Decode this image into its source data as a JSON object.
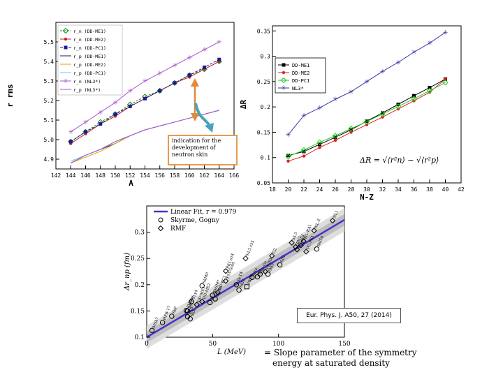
{
  "annotation": {
    "text": "indication for the development of neutron skin"
  },
  "citation": {
    "text": "Eur. Phys. J. A50, 27 (2014)"
  },
  "slope_note": {
    "line1": "= Slope parameter of the symmetry",
    "line2": "energy at saturated density"
  },
  "chart_data": [
    {
      "type": "line",
      "xlabel": "A",
      "ylabel": "r rms",
      "xlim": [
        142,
        166
      ],
      "ylim": [
        4.85,
        5.6
      ],
      "xticks": [
        142,
        144,
        146,
        148,
        150,
        152,
        154,
        156,
        158,
        160,
        162,
        164,
        166
      ],
      "yticks": [
        4.9,
        5.0,
        5.1,
        5.2,
        5.3,
        5.4,
        5.5
      ],
      "x": [
        144,
        146,
        148,
        150,
        152,
        154,
        156,
        158,
        160,
        162,
        164
      ],
      "legend": [
        "r_n (DD-ME1)",
        "r_n (DD-ME2)",
        "r_n (DD-PC1)",
        "r_p (DD-ME1)",
        "r_p (DD-ME2)",
        "r_p (DD-PC1)",
        "r_n (NL3*)",
        "r_p (NL3*)"
      ],
      "legend_position": "top-left",
      "series": [
        {
          "name": "r_n (DD-ME1)",
          "color": "#1a8c1a",
          "values": [
            4.99,
            5.04,
            5.09,
            5.13,
            5.18,
            5.22,
            5.25,
            5.29,
            5.33,
            5.36,
            5.4
          ]
        },
        {
          "name": "r_n (DD-ME2)",
          "color": "#cc2222",
          "values": [
            4.98,
            5.03,
            5.08,
            5.12,
            5.17,
            5.21,
            5.25,
            5.29,
            5.32,
            5.36,
            5.4
          ]
        },
        {
          "name": "r_n (DD-PC1)",
          "color": "#1a1a99",
          "values": [
            4.99,
            5.04,
            5.08,
            5.13,
            5.17,
            5.21,
            5.25,
            5.29,
            5.33,
            5.37,
            5.41
          ]
        },
        {
          "name": "r_p (DD-ME1)",
          "color": "#0d1f66",
          "values": [
            4.88,
            4.92,
            4.95,
            4.98,
            5.02,
            5.05,
            5.07,
            5.09,
            5.11,
            5.13,
            5.15
          ]
        },
        {
          "name": "r_p (DD-ME2)",
          "color": "#d9a800",
          "values": [
            4.88,
            4.91,
            4.94,
            4.98,
            5.02,
            5.05,
            5.07,
            5.09,
            5.11,
            5.13,
            5.15
          ]
        },
        {
          "name": "r_p (DD-PC1)",
          "color": "#66c8ee",
          "values": [
            4.89,
            4.92,
            4.95,
            4.99,
            5.02,
            5.05,
            5.07,
            5.09,
            5.11,
            5.13,
            5.15
          ]
        },
        {
          "name": "r_n (NL3*)",
          "color": "#aa55cc",
          "values": [
            5.04,
            5.09,
            5.14,
            5.19,
            5.25,
            5.3,
            5.34,
            5.38,
            5.42,
            5.46,
            5.5
          ]
        },
        {
          "name": "r_p (NL3*)",
          "color": "#aa55cc",
          "values": [
            4.88,
            4.92,
            4.95,
            4.99,
            5.02,
            5.05,
            5.07,
            5.09,
            5.11,
            5.13,
            5.15
          ]
        }
      ]
    },
    {
      "type": "line",
      "xlabel": "N-Z",
      "ylabel": "ΔR",
      "formula": "ΔR = √⟨r²n⟩ − √⟨r²p⟩",
      "xlim": [
        18,
        42
      ],
      "ylim": [
        0.05,
        0.36
      ],
      "xticks": [
        18,
        20,
        22,
        24,
        26,
        28,
        30,
        32,
        34,
        36,
        38,
        40,
        42
      ],
      "yticks": [
        0.05,
        0.1,
        0.15,
        0.2,
        0.25,
        0.3,
        0.35
      ],
      "x": [
        20,
        22,
        24,
        26,
        28,
        30,
        32,
        34,
        36,
        38,
        40
      ],
      "legend": [
        "DD-ME1",
        "DD-ME2",
        "DD-PC1",
        "NL3*"
      ],
      "legend_position": "top-left",
      "series": [
        {
          "name": "DD-ME1",
          "color": "#000000",
          "values": [
            0.104,
            0.112,
            0.126,
            0.14,
            0.155,
            0.172,
            0.188,
            0.205,
            0.222,
            0.238,
            0.255
          ]
        },
        {
          "name": "DD-ME2",
          "color": "#dd2222",
          "values": [
            0.093,
            0.103,
            0.12,
            0.134,
            0.15,
            0.165,
            0.18,
            0.196,
            0.212,
            0.229,
            0.255
          ]
        },
        {
          "name": "DD-PC1",
          "color": "#22cc22",
          "values": [
            0.102,
            0.115,
            0.13,
            0.143,
            0.157,
            0.171,
            0.186,
            0.201,
            0.216,
            0.232,
            0.248
          ]
        },
        {
          "name": "NL3*",
          "color": "#3333aa",
          "values": [
            0.145,
            0.183,
            0.198,
            0.215,
            0.23,
            0.25,
            0.27,
            0.288,
            0.308,
            0.326,
            0.347
          ]
        }
      ]
    },
    {
      "type": "scatter",
      "xlabel": "L (MeV)",
      "ylabel": "Δr_np (fm)",
      "xlim": [
        0,
        150
      ],
      "ylim": [
        0.1,
        0.35
      ],
      "xticks": [
        0,
        50,
        100,
        150
      ],
      "yticks": [
        0.1,
        0.15,
        0.2,
        0.25,
        0.3
      ],
      "legend": [
        "Linear Fit, r = 0.979",
        "Skyrme, Gogny",
        "RMF"
      ],
      "legend_position": "top-left",
      "fit": {
        "slope": 0.00149,
        "intercept": 0.1,
        "r": 0.979
      },
      "points": [
        {
          "label": "MSk7",
          "x": 4,
          "y": 0.113,
          "m": "circle"
        },
        {
          "label": "HFB-17",
          "x": 12,
          "y": 0.128,
          "m": "circle"
        },
        {
          "label": "SkP",
          "x": 19,
          "y": 0.14,
          "m": "circle"
        },
        {
          "label": "SV-bas",
          "x": 30,
          "y": 0.151,
          "m": "circle"
        },
        {
          "label": "SkM*",
          "x": 31,
          "y": 0.15,
          "m": "circle"
        },
        {
          "label": "D1S",
          "x": 31,
          "y": 0.139,
          "m": "circle"
        },
        {
          "label": "SLy4",
          "x": 34,
          "y": 0.168,
          "m": "circle"
        },
        {
          "label": "SkX",
          "x": 33,
          "y": 0.135,
          "m": "circle"
        },
        {
          "label": "DD-ME1",
          "x": 38,
          "y": 0.162,
          "m": "diamond"
        },
        {
          "label": "DD-ME2",
          "x": 42,
          "y": 0.168,
          "m": "diamond"
        },
        {
          "label": "SkMP",
          "x": 42,
          "y": 0.198,
          "m": "circle"
        },
        {
          "label": "SLy5",
          "x": 48,
          "y": 0.166,
          "m": "circle"
        },
        {
          "label": "Sk-Rs",
          "x": 52,
          "y": 0.173,
          "m": "circle"
        },
        {
          "label": "SkSM*",
          "x": 50,
          "y": 0.18,
          "m": "circle"
        },
        {
          "label": "DD-PC1",
          "x": 54,
          "y": 0.185,
          "m": "diamond"
        },
        {
          "label": "FSUGold",
          "x": 60,
          "y": 0.207,
          "m": "diamond"
        },
        {
          "label": "SkI2",
          "x": 70,
          "y": 0.19,
          "m": "circle"
        },
        {
          "label": "Sk-T4",
          "x": 68,
          "y": 0.2,
          "m": "circle"
        },
        {
          "label": "PKO3",
          "x": 76,
          "y": 0.196,
          "m": "square"
        },
        {
          "label": "PK1.s24",
          "x": 60,
          "y": 0.226,
          "m": "diamond"
        },
        {
          "label": "SV",
          "x": 84,
          "y": 0.215,
          "m": "circle"
        },
        {
          "label": "SkI5",
          "x": 92,
          "y": 0.22,
          "m": "circle"
        },
        {
          "label": "Ska",
          "x": 80,
          "y": 0.214,
          "m": "circle"
        },
        {
          "label": "Sk-Gs",
          "x": 86,
          "y": 0.22,
          "m": "circle"
        },
        {
          "label": "PKDD",
          "x": 90,
          "y": 0.225,
          "m": "diamond"
        },
        {
          "label": "NL3.s25",
          "x": 75,
          "y": 0.25,
          "m": "diamond"
        },
        {
          "label": "G2",
          "x": 95,
          "y": 0.255,
          "m": "diamond"
        },
        {
          "label": "SIII",
          "x": 101,
          "y": 0.238,
          "m": "circle"
        },
        {
          "label": "NL3",
          "x": 110,
          "y": 0.28,
          "m": "diamond"
        },
        {
          "label": "TM1",
          "x": 113,
          "y": 0.272,
          "m": "diamond"
        },
        {
          "label": "NL-SH",
          "x": 114,
          "y": 0.267,
          "m": "diamond"
        },
        {
          "label": "PK1",
          "x": 117,
          "y": 0.275,
          "m": "diamond"
        },
        {
          "label": "NL-RA1",
          "x": 119,
          "y": 0.283,
          "m": "diamond"
        },
        {
          "label": "PC-PK1",
          "x": 121,
          "y": 0.263,
          "m": "diamond"
        },
        {
          "label": "NL-Z",
          "x": 127,
          "y": 0.303,
          "m": "diamond"
        },
        {
          "label": "NL1",
          "x": 141,
          "y": 0.322,
          "m": "diamond"
        },
        {
          "label": "SkI5b",
          "x": 129,
          "y": 0.268,
          "m": "circle"
        }
      ]
    }
  ]
}
